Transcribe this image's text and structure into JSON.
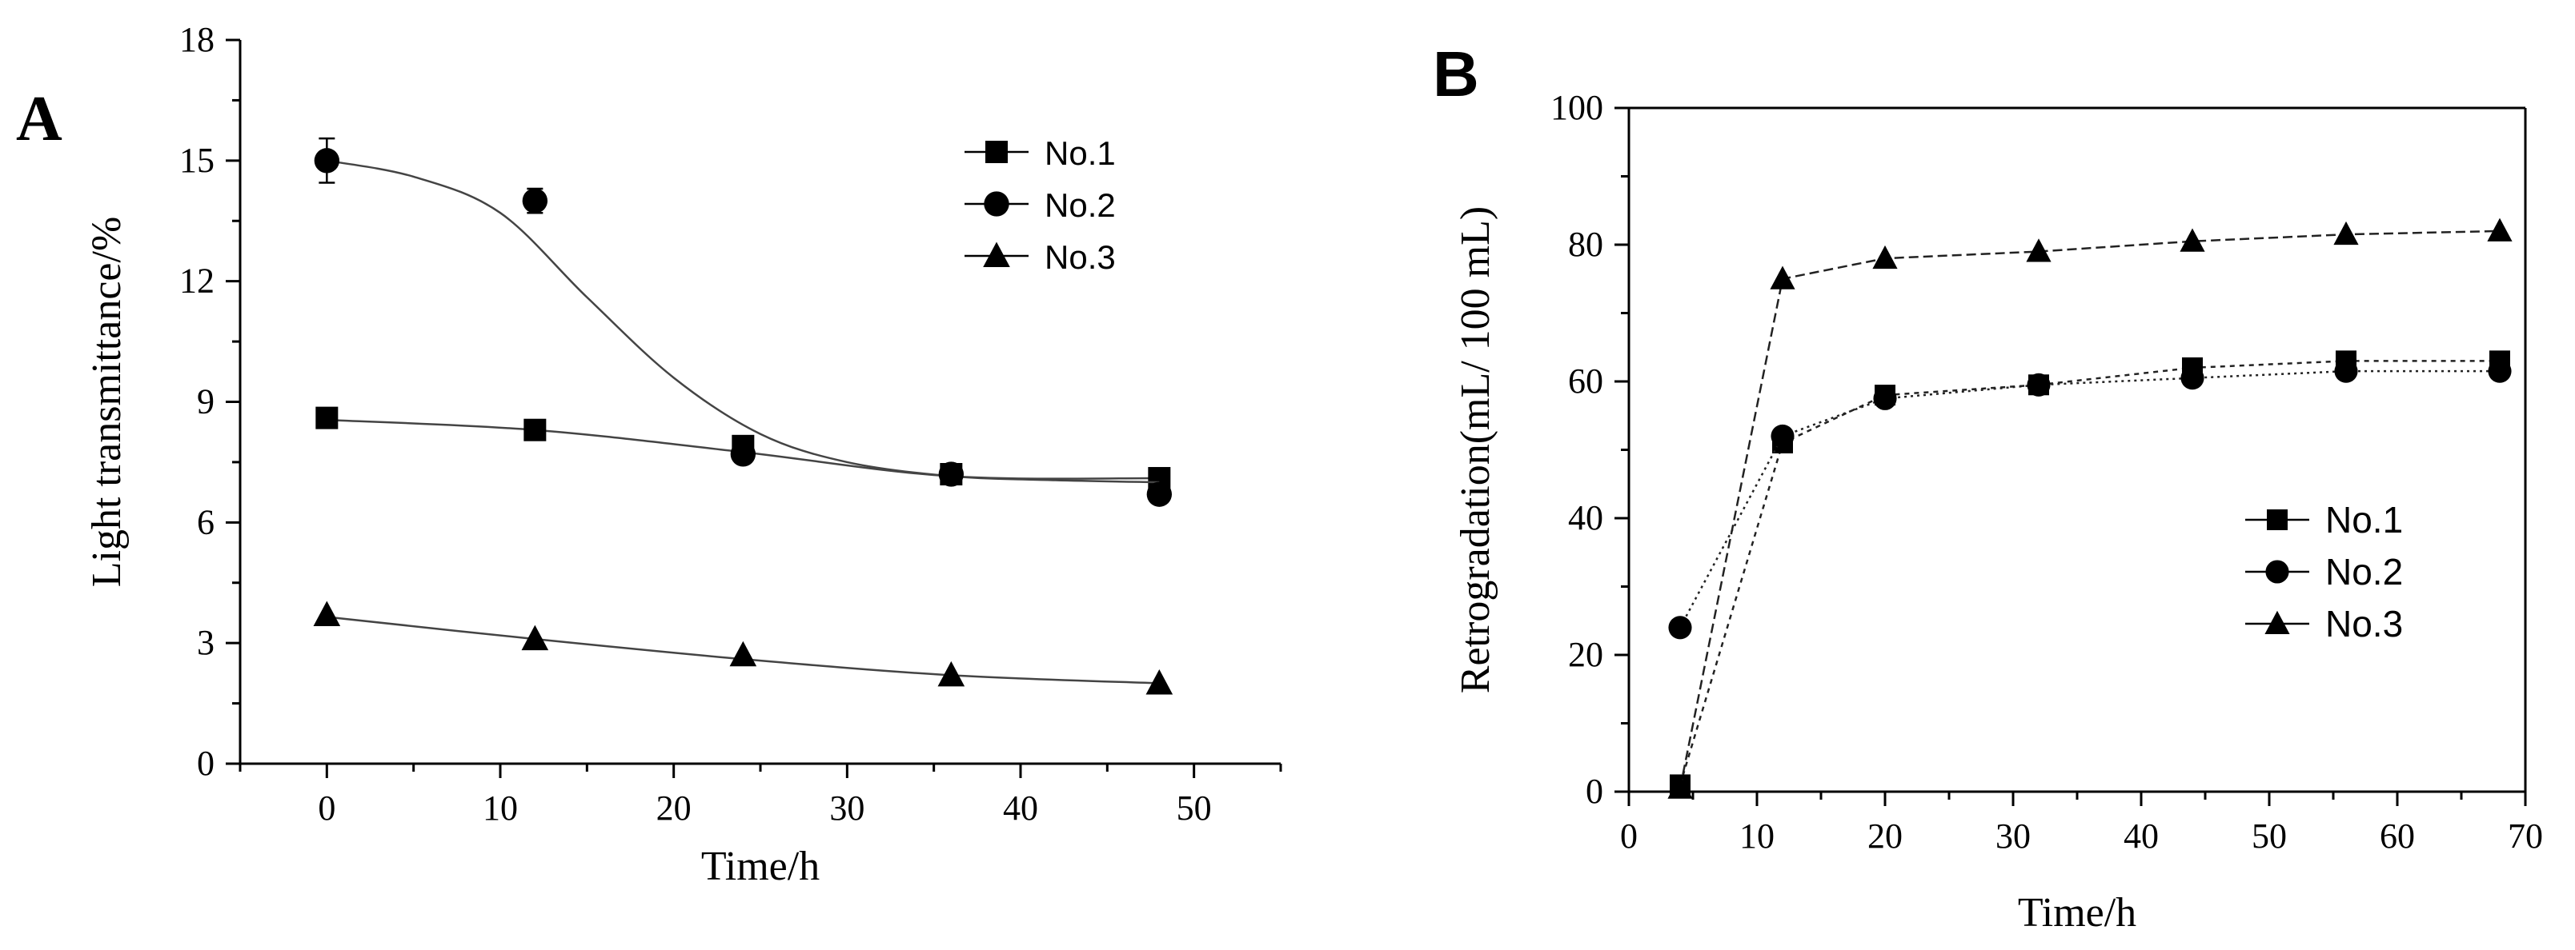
{
  "chart_data": [
    {
      "panel_label": "A",
      "type": "line",
      "xlabel": "Time/h",
      "ylabel": "Light transmittance/%",
      "xlim": [
        -5,
        55
      ],
      "ylim": [
        0,
        18
      ],
      "xticks": [
        0,
        10,
        20,
        30,
        40,
        50
      ],
      "yticks": [
        0,
        3,
        6,
        9,
        12,
        15,
        18
      ],
      "legend_position": "top-right",
      "series": [
        {
          "name": "No.1",
          "marker": "square",
          "x": [
            0,
            12,
            24,
            36,
            48
          ],
          "y": [
            8.6,
            8.3,
            7.9,
            7.2,
            7.1
          ],
          "curve": [
            [
              0,
              8.55
            ],
            [
              12,
              8.3
            ],
            [
              24,
              7.75
            ],
            [
              36,
              7.15
            ],
            [
              48,
              7.1
            ]
          ]
        },
        {
          "name": "No.2",
          "marker": "circle",
          "x": [
            0,
            12,
            24,
            36,
            48
          ],
          "y": [
            15.0,
            14.0,
            7.7,
            7.2,
            6.7
          ],
          "error": [
            0.55,
            0.3,
            0.2,
            0.15,
            0.2
          ],
          "curve": [
            [
              0,
              15.0
            ],
            [
              5,
              14.6
            ],
            [
              10,
              13.7
            ],
            [
              15,
              11.6
            ],
            [
              20,
              9.6
            ],
            [
              25,
              8.2
            ],
            [
              30,
              7.5
            ],
            [
              36,
              7.15
            ],
            [
              42,
              7.05
            ],
            [
              48,
              7.0
            ]
          ]
        },
        {
          "name": "No.3",
          "marker": "triangle",
          "x": [
            0,
            12,
            24,
            36,
            48
          ],
          "y": [
            3.7,
            3.1,
            2.7,
            2.2,
            2.0
          ],
          "curve": [
            [
              0,
              3.65
            ],
            [
              12,
              3.1
            ],
            [
              24,
              2.6
            ],
            [
              36,
              2.2
            ],
            [
              48,
              2.0
            ]
          ]
        }
      ]
    },
    {
      "panel_label": "B",
      "type": "line",
      "xlabel": "Time/h",
      "ylabel": "Retrogradation(mL/ 100 mL)",
      "xlim": [
        0,
        70
      ],
      "ylim": [
        0,
        100
      ],
      "xticks": [
        0,
        10,
        20,
        30,
        40,
        50,
        60,
        70
      ],
      "yticks": [
        0,
        20,
        40,
        60,
        80,
        100
      ],
      "legend_position": "bottom-right",
      "series": [
        {
          "name": "No.1",
          "marker": "square",
          "x": [
            4,
            12,
            20,
            32,
            44,
            56,
            68
          ],
          "y": [
            1,
            51,
            58,
            59.5,
            62,
            63,
            63
          ]
        },
        {
          "name": "No.2",
          "marker": "circle",
          "x": [
            4,
            12,
            20,
            32,
            44,
            56,
            68
          ],
          "y": [
            24,
            52,
            57.5,
            59.5,
            60.5,
            61.5,
            61.5
          ]
        },
        {
          "name": "No.3",
          "marker": "triangle",
          "x": [
            4,
            12,
            20,
            32,
            44,
            56,
            68
          ],
          "y": [
            0.5,
            75,
            78,
            79,
            80.5,
            81.5,
            82
          ]
        }
      ]
    }
  ]
}
